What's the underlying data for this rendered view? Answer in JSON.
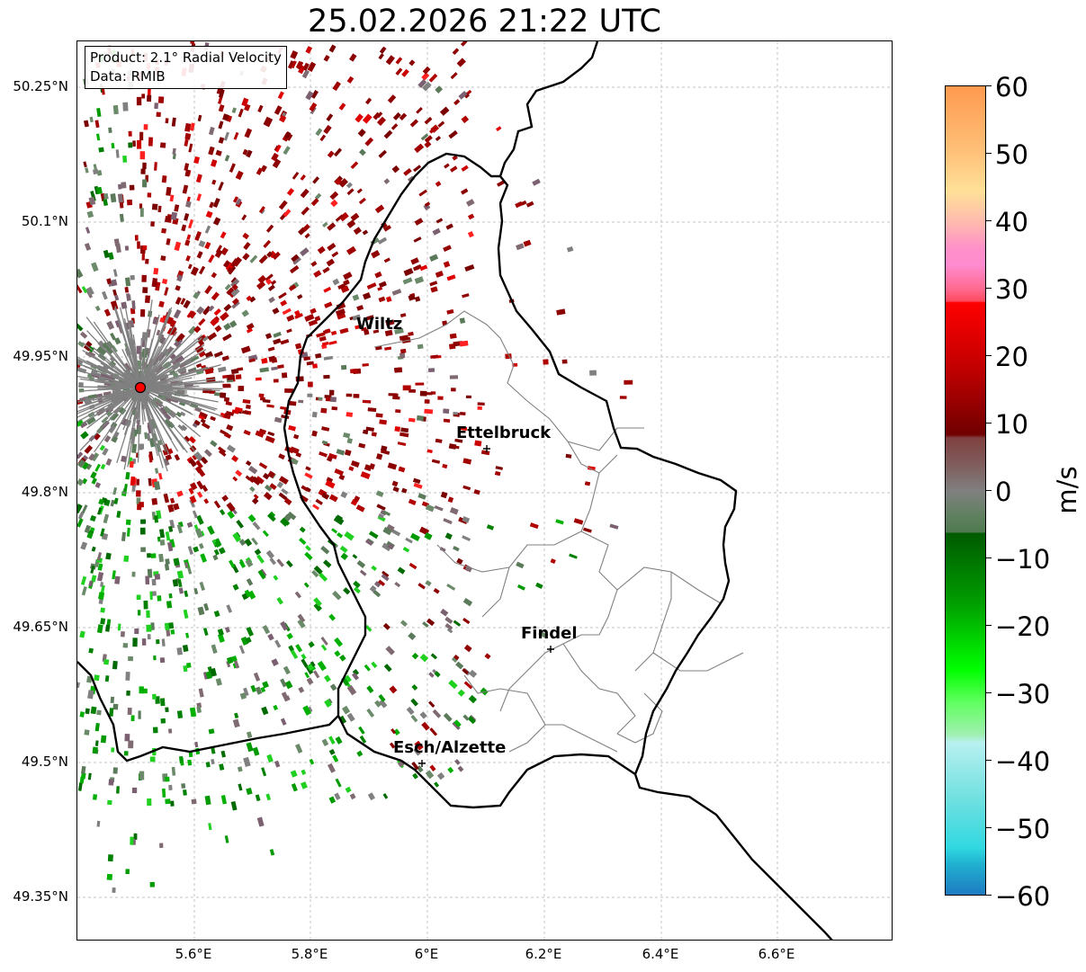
{
  "title": "25.02.2026 21:22 UTC",
  "info_box": {
    "product": "Product: 2.1° Radial Velocity",
    "data_source": "Data: RMIB"
  },
  "axes": {
    "lon_ticks": [
      "5.6°E",
      "5.8°E",
      "6°E",
      "6.2°E",
      "6.4°E",
      "6.6°E"
    ],
    "lat_ticks": [
      "50.25°N",
      "50.1°N",
      "49.95°N",
      "49.8°N",
      "49.65°N",
      "49.5°N",
      "49.35°N"
    ],
    "grid": true
  },
  "places": [
    {
      "name": "Wiltz",
      "marker": false
    },
    {
      "name": "Ettelbruck",
      "marker": true
    },
    {
      "name": "Findel",
      "marker": true
    },
    {
      "name": "Esch/Alzette",
      "marker": true
    }
  ],
  "radar_site_color": "#ff0000",
  "colorbar": {
    "label": "m/s",
    "range": [
      -60,
      60
    ],
    "ticks": [
      "60",
      "50",
      "40",
      "30",
      "20",
      "10",
      "0",
      "−10",
      "−20",
      "−30",
      "−40",
      "−50",
      "−60"
    ]
  },
  "colors": {
    "outbound_dark": "#8b0000",
    "outbound_red": "#cc0000",
    "inbound_green": "#008000",
    "zero_gray": "#808080",
    "border": "#000000",
    "canton_lines": "#808080"
  }
}
